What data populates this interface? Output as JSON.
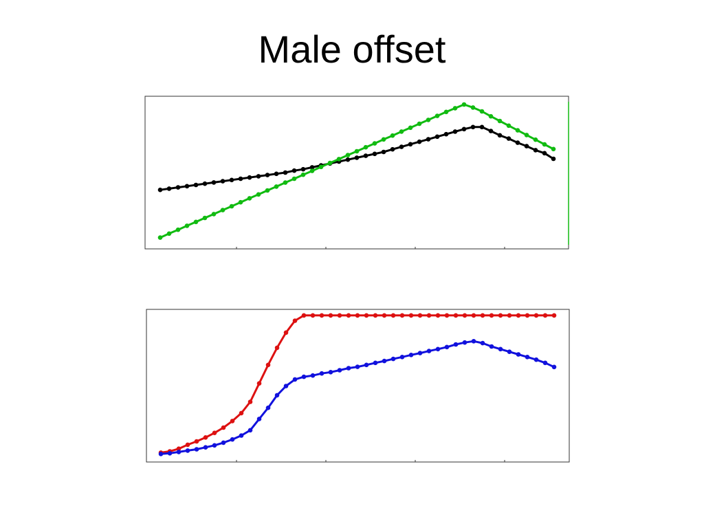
{
  "title": "Male offset",
  "colors": {
    "black": "#000000",
    "green": "#11bb11",
    "red": "#dd1111",
    "blue": "#1111dd",
    "frame": "#333333"
  },
  "chart_data": [
    {
      "type": "line",
      "title": "",
      "xlabel": "",
      "ylabel": "",
      "xlim": [
        0,
        46
      ],
      "ylim": [
        0,
        1
      ],
      "grid": false,
      "legend": "none",
      "x": [
        0,
        1,
        2,
        3,
        4,
        5,
        6,
        7,
        8,
        9,
        10,
        11,
        12,
        13,
        14,
        15,
        16,
        17,
        18,
        19,
        20,
        21,
        22,
        23,
        24,
        25,
        26,
        27,
        28,
        29,
        30,
        31,
        32,
        33,
        34,
        35,
        36,
        37,
        38,
        39,
        40,
        41,
        42,
        43,
        44
      ],
      "series": [
        {
          "color": "black",
          "values": [
            0.379,
            0.388,
            0.397,
            0.406,
            0.415,
            0.424,
            0.433,
            0.442,
            0.451,
            0.46,
            0.469,
            0.478,
            0.487,
            0.496,
            0.505,
            0.519,
            0.529,
            0.543,
            0.557,
            0.571,
            0.585,
            0.599,
            0.613,
            0.627,
            0.641,
            0.655,
            0.674,
            0.692,
            0.711,
            0.729,
            0.747,
            0.766,
            0.784,
            0.803,
            0.821,
            0.836,
            0.836,
            0.807,
            0.776,
            0.752,
            0.722,
            0.697,
            0.668,
            0.646,
            0.605
          ]
        },
        {
          "color": "green",
          "values": [
            0.032,
            0.061,
            0.089,
            0.118,
            0.146,
            0.175,
            0.203,
            0.232,
            0.26,
            0.289,
            0.318,
            0.346,
            0.375,
            0.403,
            0.432,
            0.46,
            0.489,
            0.517,
            0.546,
            0.575,
            0.603,
            0.632,
            0.66,
            0.689,
            0.717,
            0.746,
            0.774,
            0.803,
            0.831,
            0.86,
            0.888,
            0.917,
            0.946,
            0.973,
            1.0,
            0.978,
            0.95,
            0.914,
            0.88,
            0.846,
            0.812,
            0.778,
            0.744,
            0.71,
            0.676
          ]
        }
      ]
    },
    {
      "type": "line",
      "title": "",
      "xlabel": "",
      "ylabel": "",
      "xlim": [
        0,
        46
      ],
      "ylim": [
        0,
        1
      ],
      "grid": false,
      "legend": "none",
      "x": [
        0,
        1,
        2,
        3,
        4,
        5,
        6,
        7,
        8,
        9,
        10,
        11,
        12,
        13,
        14,
        15,
        16,
        17,
        18,
        19,
        20,
        21,
        22,
        23,
        24,
        25,
        26,
        27,
        28,
        29,
        30,
        31,
        32,
        33,
        34,
        35,
        36,
        37,
        38,
        39,
        40,
        41,
        42,
        43,
        44
      ],
      "series": [
        {
          "color": "red",
          "values": [
            0.045,
            0.054,
            0.072,
            0.099,
            0.122,
            0.149,
            0.18,
            0.216,
            0.261,
            0.315,
            0.392,
            0.518,
            0.644,
            0.761,
            0.865,
            0.946,
            0.982,
            0.982,
            0.982,
            0.982,
            0.982,
            0.982,
            0.982,
            0.982,
            0.982,
            0.982,
            0.982,
            0.982,
            0.982,
            0.982,
            0.982,
            0.982,
            0.982,
            0.982,
            0.982,
            0.982,
            0.982,
            0.982,
            0.982,
            0.982,
            0.982,
            0.982,
            0.982,
            0.982,
            0.982
          ]
        },
        {
          "color": "blue",
          "values": [
            0.036,
            0.041,
            0.05,
            0.059,
            0.068,
            0.081,
            0.095,
            0.113,
            0.135,
            0.162,
            0.198,
            0.275,
            0.351,
            0.437,
            0.5,
            0.545,
            0.563,
            0.572,
            0.586,
            0.595,
            0.608,
            0.622,
            0.631,
            0.644,
            0.658,
            0.671,
            0.685,
            0.698,
            0.712,
            0.725,
            0.739,
            0.752,
            0.766,
            0.784,
            0.797,
            0.806,
            0.793,
            0.77,
            0.752,
            0.734,
            0.716,
            0.698,
            0.68,
            0.658,
            0.63
          ]
        }
      ]
    }
  ]
}
